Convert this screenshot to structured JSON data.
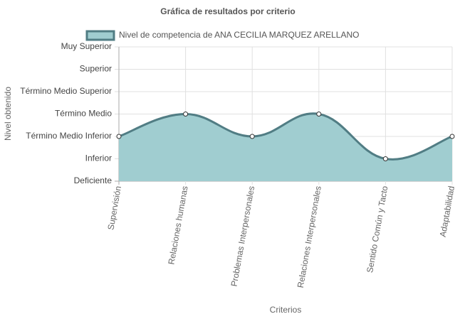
{
  "chart_data": {
    "type": "area",
    "title": "Gráfica de resultados por criterio",
    "x_label": "Criterios",
    "y_label": "Nivel obtenido",
    "categories": [
      "Supervisión",
      "Relaciones humanas",
      "Problemas Interpersonales",
      "Relaciones Interpersonales",
      "Sentido Común y Tacto",
      "Adaptabilidad"
    ],
    "series": [
      {
        "name": "Nivel de competencia de ANA CECILIA MARQUEZ ARELLANO",
        "color": "#517d84",
        "fill": "#a0cdd0",
        "values": [
          2,
          3,
          2,
          3,
          1,
          2
        ]
      }
    ],
    "ylim": [
      0,
      6
    ],
    "yticks": [
      {
        "value": 0,
        "label": "Deficiente"
      },
      {
        "value": 1,
        "label": "Inferior"
      },
      {
        "value": 2,
        "label": "Término Medio Inferior"
      },
      {
        "value": 3,
        "label": "Término Medio"
      },
      {
        "value": 4,
        "label": "Término Medio Superior"
      },
      {
        "value": 5,
        "label": "Superior"
      },
      {
        "value": 6,
        "label": "Muy Superior"
      }
    ],
    "grid": true,
    "legend": "top"
  }
}
